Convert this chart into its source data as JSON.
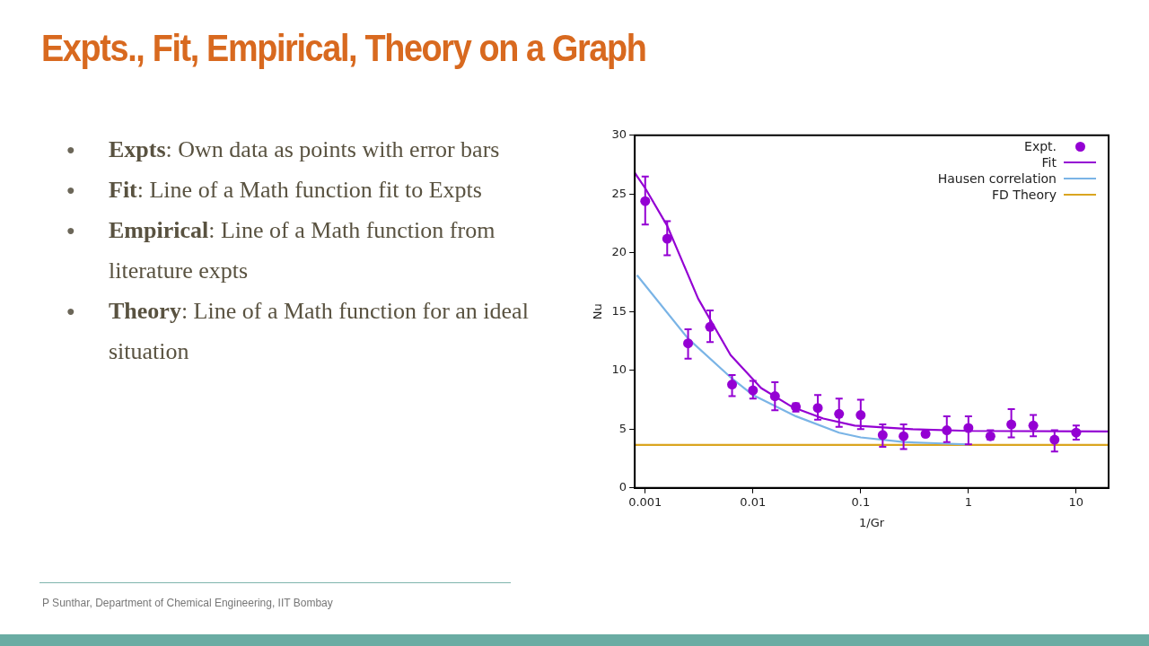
{
  "chart_data": {
    "type": "scatter",
    "title": "Expts., Fit, Empirical, Theory on a Graph",
    "xlabel": "1/Gr",
    "ylabel": "Nu",
    "log": "x",
    "grid": false,
    "legend": "top right",
    "xlim": [
      0.0008,
      20
    ],
    "xticks": [
      0.001,
      0.01,
      0.1,
      1,
      10
    ],
    "ylim": [
      0,
      30
    ],
    "yticks": [
      0,
      5,
      10,
      15,
      20,
      25,
      30
    ],
    "series": [
      {
        "name": "Expt.",
        "type": "scatter",
        "marker": "circle",
        "color": "#9400d3",
        "x": [
          0.001,
          0.0016,
          0.0025,
          0.004,
          0.0064,
          0.01,
          0.016,
          0.025,
          0.04,
          0.063,
          0.1,
          0.16,
          0.25,
          0.4,
          0.63,
          1,
          1.6,
          2.5,
          4,
          6.3,
          10
        ],
        "values": [
          24.4,
          21.2,
          12.3,
          13.7,
          8.8,
          8.3,
          7.8,
          6.9,
          6.8,
          6.3,
          6.2,
          4.5,
          4.4,
          4.6,
          4.9,
          5.1,
          4.4,
          5.4,
          5.3,
          4.1,
          4.7
        ],
        "errors": [
          [
            22.4,
            26.5
          ],
          [
            19.8,
            22.7
          ],
          [
            11,
            13.5
          ],
          [
            12.4,
            15.1
          ],
          [
            7.8,
            9.6
          ],
          [
            7.6,
            9.1
          ],
          [
            6.6,
            9
          ],
          [
            6.5,
            7.2
          ],
          [
            5.8,
            7.9
          ],
          [
            5.2,
            7.6
          ],
          [
            5,
            7.5
          ],
          [
            3.5,
            5.4
          ],
          [
            3.3,
            5.4
          ],
          [
            4.4,
            4.8
          ],
          [
            3.9,
            6.1
          ],
          [
            3.7,
            6.1
          ],
          [
            4.1,
            4.9
          ],
          [
            4.3,
            6.7
          ],
          [
            4.4,
            6.2
          ],
          [
            3.1,
            4.9
          ],
          [
            4.1,
            5.3
          ]
        ]
      },
      {
        "name": "Fit",
        "type": "line",
        "marker": "none",
        "color": "#9400d3",
        "x": [
          0.0008,
          0.001,
          0.0016,
          0.0031,
          0.0062,
          0.0119,
          0.023,
          0.045,
          0.088,
          0.3,
          1,
          20
        ],
        "values": [
          26.8,
          25.5,
          22.3,
          16.1,
          11.3,
          8.5,
          6.9,
          5.9,
          5.3,
          5,
          4.85,
          4.8
        ]
      },
      {
        "name": "Hausen correlation",
        "type": "line",
        "marker": "none",
        "color": "#7ab4e6",
        "x": [
          0.00084,
          0.0025,
          0.0064,
          0.01,
          0.025,
          0.063,
          0.1,
          0.25,
          0.5,
          1
        ],
        "values": [
          18.1,
          12.7,
          9.3,
          7.9,
          6.1,
          4.7,
          4.3,
          3.9,
          3.8,
          3.7
        ]
      },
      {
        "name": "FD Theory",
        "type": "line",
        "marker": "none",
        "color": "#daa520",
        "x": [
          0.0008,
          20
        ],
        "values": [
          3.66,
          3.66
        ]
      }
    ],
    "annotations": [
      "● Expts: Own data as points with error bars",
      "● Fit: Line of a Math function fit to Expts",
      "● Empirical: Line of a Math function from literature expts",
      "● Theory: Line of a Math function for an ideal situation",
      "P Sunthar,  Department of Chemical Engineering, IIT Bombay"
    ]
  }
}
